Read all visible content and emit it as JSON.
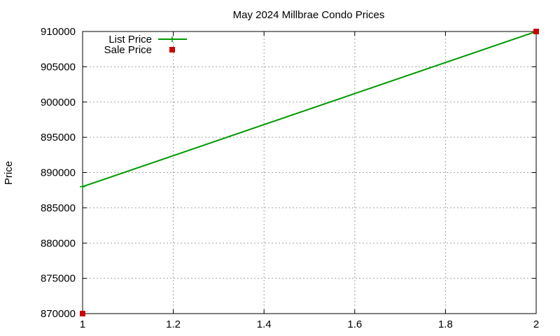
{
  "chart_data": {
    "type": "line",
    "title": "May 2024 Millbrae Condo Prices",
    "xlabel": "",
    "ylabel": "Price",
    "xlim": [
      1,
      2
    ],
    "ylim": [
      870000,
      910000
    ],
    "x_ticks": [
      1,
      1.2,
      1.4,
      1.6,
      1.8,
      2
    ],
    "x_tick_labels": [
      "1",
      "1.2",
      "1.4",
      "1.6",
      "1.8",
      "2"
    ],
    "y_ticks": [
      870000,
      875000,
      880000,
      885000,
      890000,
      895000,
      900000,
      905000,
      910000
    ],
    "y_tick_labels": [
      "870000",
      "875000",
      "880000",
      "885000",
      "890000",
      "895000",
      "900000",
      "905000",
      "910000"
    ],
    "grid": true,
    "legend_position": "top-left",
    "series": [
      {
        "name": "List Price",
        "style": "linespoints",
        "marker": "plus",
        "color": "#009900",
        "x": [
          1,
          2
        ],
        "y": [
          888000,
          910000
        ]
      },
      {
        "name": "Sale Price",
        "style": "points",
        "marker": "square",
        "color": "#cc0000",
        "x": [
          1,
          2
        ],
        "y": [
          870000,
          910000
        ]
      }
    ]
  }
}
